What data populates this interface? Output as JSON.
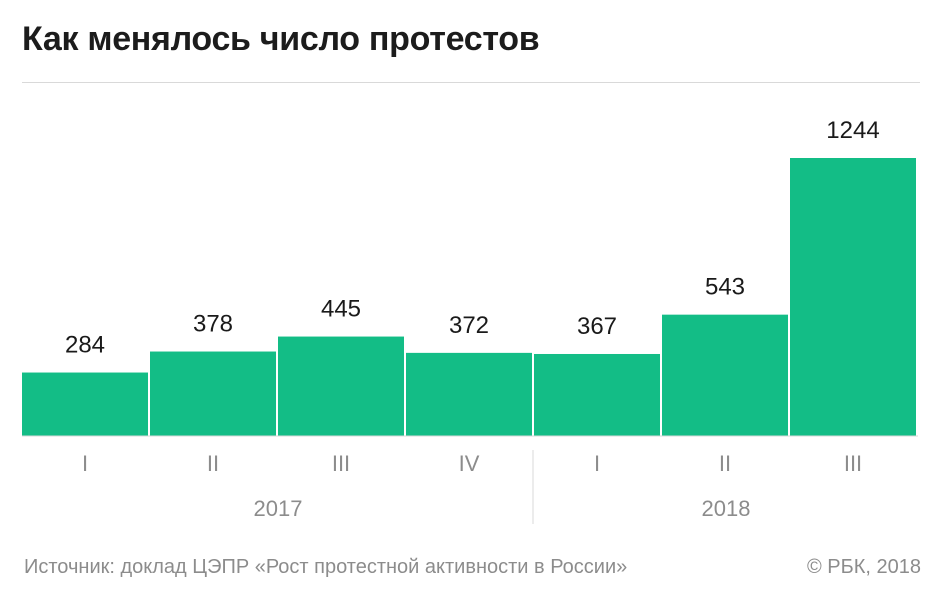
{
  "title": "Как менялось число протестов",
  "source": "Источник: доклад ЦЭПР «Рост протестной активности в России»",
  "credit": "© РБК, 2018",
  "colors": {
    "bar": "#13bd86",
    "axis_text": "#8c8c8c",
    "value_text": "#1a1a1a",
    "rule": "#d9d9d9"
  },
  "chart_data": {
    "type": "bar",
    "title": "Как менялось число протестов",
    "categories": [
      "I",
      "II",
      "III",
      "IV",
      "I",
      "II",
      "III"
    ],
    "groups": [
      {
        "label": "2017",
        "count": 4
      },
      {
        "label": "2018",
        "count": 3
      }
    ],
    "values": [
      284,
      378,
      445,
      372,
      367,
      543,
      1244
    ],
    "data_labels": [
      "284",
      "378",
      "445",
      "372",
      "367",
      "543",
      "1244"
    ],
    "ylim": [
      0,
      1244
    ],
    "grid": false,
    "legend": "none"
  }
}
